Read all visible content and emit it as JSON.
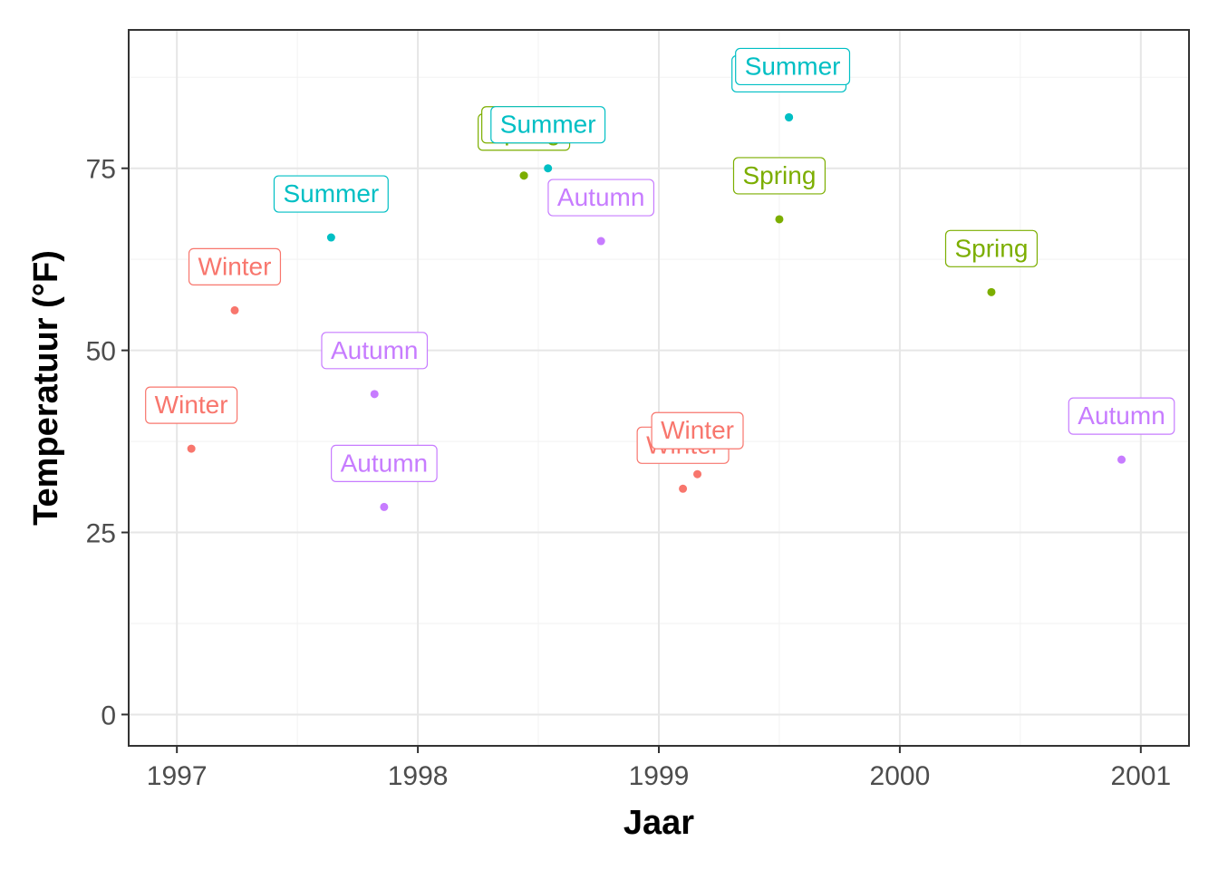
{
  "chart_data": {
    "type": "scatter",
    "xlabel": "Jaar",
    "ylabel": "Temperatuur (°F)",
    "xlim": [
      1996.8,
      2001.2
    ],
    "ylim": [
      -4.3,
      94
    ],
    "x_ticks": [
      1997,
      1998,
      1999,
      2000,
      2001
    ],
    "y_ticks": [
      0,
      25,
      50,
      75
    ],
    "grid": true,
    "legend": "none",
    "colors": {
      "Winter": "#F8766D",
      "Spring": "#7CAE00",
      "Summer": "#00BFC4",
      "Autumn": "#C77CFF"
    },
    "points": [
      {
        "x": 1997.06,
        "y": 36.5,
        "label": "Winter"
      },
      {
        "x": 1997.24,
        "y": 55.5,
        "label": "Winter"
      },
      {
        "x": 1997.64,
        "y": 65.5,
        "label": "Summer"
      },
      {
        "x": 1997.82,
        "y": 44.0,
        "label": "Autumn"
      },
      {
        "x": 1997.86,
        "y": 28.5,
        "label": "Autumn"
      },
      {
        "x": 1998.44,
        "y": 74.0,
        "label": "Spring"
      },
      {
        "x": 1998.44,
        "y": 74.0,
        "label": "Spring"
      },
      {
        "x": 1998.54,
        "y": 75.0,
        "label": "Summer"
      },
      {
        "x": 1998.76,
        "y": 65.0,
        "label": "Autumn"
      },
      {
        "x": 1999.1,
        "y": 31.0,
        "label": "Winter"
      },
      {
        "x": 1999.16,
        "y": 33.0,
        "label": "Winter"
      },
      {
        "x": 1999.5,
        "y": 68.0,
        "label": "Spring"
      },
      {
        "x": 1999.54,
        "y": 82.0,
        "label": "Summer"
      },
      {
        "x": 1999.54,
        "y": 82.0,
        "label": "Summer"
      },
      {
        "x": 2000.38,
        "y": 58.0,
        "label": "Spring"
      },
      {
        "x": 2000.92,
        "y": 35.0,
        "label": "Autumn"
      }
    ]
  }
}
